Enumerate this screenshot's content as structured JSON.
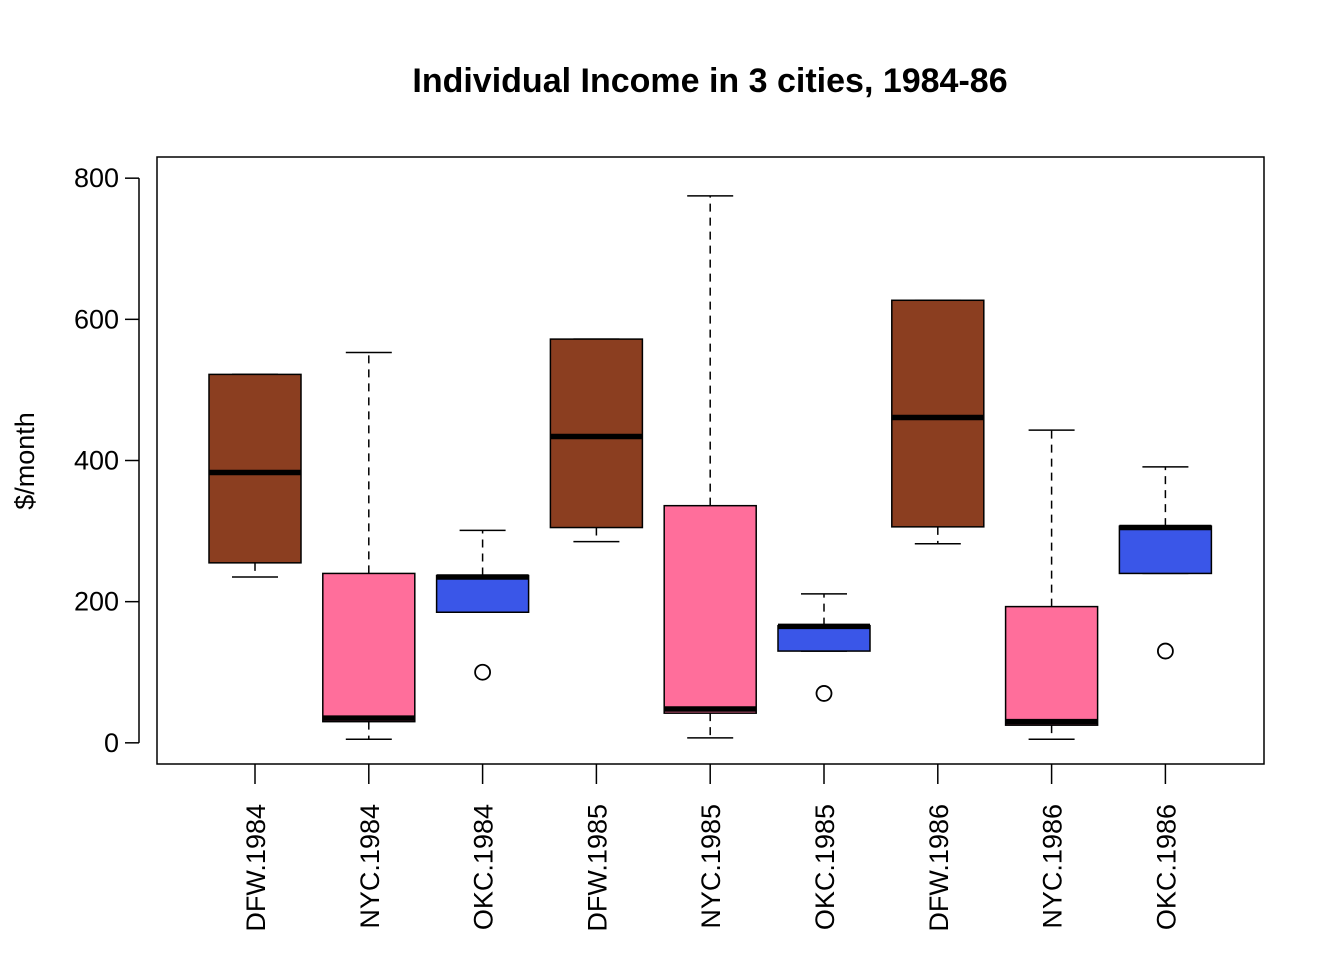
{
  "chart_data": {
    "type": "boxplot",
    "title": "Individual Income in 3 cities, 1984-86",
    "xlabel": "",
    "ylabel": "$/month",
    "ylim": [
      -30,
      830
    ],
    "yticks": [
      0,
      200,
      400,
      600,
      800
    ],
    "grid": false,
    "colors": {
      "DFW": "#8B3E20",
      "NYC": "#FF6E9B",
      "OKC": "#3A56E8"
    },
    "categories": [
      "DFW.1984",
      "NYC.1984",
      "OKC.1984",
      "DFW.1985",
      "NYC.1985",
      "OKC.1985",
      "DFW.1986",
      "NYC.1986",
      "OKC.1986"
    ],
    "boxes": [
      {
        "label": "DFW.1984",
        "group": "DFW",
        "whisker_low": 235,
        "q1": 255,
        "median": 383,
        "q3": 522,
        "whisker_high": 522,
        "outliers": []
      },
      {
        "label": "NYC.1984",
        "group": "NYC",
        "whisker_low": 5,
        "q1": 30,
        "median": 35,
        "q3": 240,
        "whisker_high": 553,
        "outliers": []
      },
      {
        "label": "OKC.1984",
        "group": "OKC",
        "whisker_low": 185,
        "q1": 185,
        "median": 235,
        "q3": 237,
        "whisker_high": 301,
        "outliers": [
          100
        ]
      },
      {
        "label": "DFW.1985",
        "group": "DFW",
        "whisker_low": 285,
        "q1": 305,
        "median": 434,
        "q3": 572,
        "whisker_high": 572,
        "outliers": []
      },
      {
        "label": "NYC.1985",
        "group": "NYC",
        "whisker_low": 7,
        "q1": 42,
        "median": 48,
        "q3": 336,
        "whisker_high": 775,
        "outliers": []
      },
      {
        "label": "OKC.1985",
        "group": "OKC",
        "whisker_low": 130,
        "q1": 130,
        "median": 165,
        "q3": 166,
        "whisker_high": 211,
        "outliers": [
          70
        ]
      },
      {
        "label": "DFW.1986",
        "group": "DFW",
        "whisker_low": 282,
        "q1": 306,
        "median": 461,
        "q3": 627,
        "whisker_high": 627,
        "outliers": []
      },
      {
        "label": "NYC.1986",
        "group": "NYC",
        "whisker_low": 5,
        "q1": 25,
        "median": 30,
        "q3": 193,
        "whisker_high": 443,
        "outliers": []
      },
      {
        "label": "OKC.1986",
        "group": "OKC",
        "whisker_low": 240,
        "q1": 240,
        "median": 305,
        "q3": 307,
        "whisker_high": 391,
        "outliers": [
          130
        ]
      }
    ]
  }
}
